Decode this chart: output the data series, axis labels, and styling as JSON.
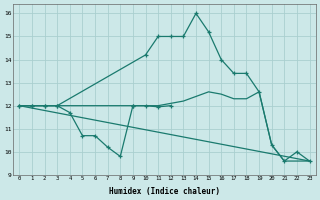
{
  "xlabel": "Humidex (Indice chaleur)",
  "background_color": "#cce8e8",
  "grid_color": "#aacfcf",
  "line_color": "#1a7a6e",
  "xlim": [
    -0.5,
    23.5
  ],
  "ylim": [
    9,
    16.4
  ],
  "xticks": [
    0,
    1,
    2,
    3,
    4,
    5,
    6,
    7,
    8,
    9,
    10,
    11,
    12,
    13,
    14,
    15,
    16,
    17,
    18,
    19,
    20,
    21,
    22,
    23
  ],
  "yticks": [
    9,
    10,
    11,
    12,
    13,
    14,
    15,
    16
  ],
  "series": [
    {
      "x": [
        0,
        1,
        2,
        3,
        10,
        11,
        12,
        13,
        14,
        15,
        16,
        17,
        18,
        19,
        20,
        21,
        22,
        23
      ],
      "y": [
        12,
        12,
        12,
        12,
        14.2,
        15,
        15,
        15,
        16,
        15.2,
        14,
        13.4,
        13.4,
        12.6,
        10.3,
        9.6,
        10.0,
        9.6
      ],
      "markers": true
    },
    {
      "x": [
        0,
        1,
        2,
        3,
        4,
        5,
        6,
        7,
        8,
        9
      ],
      "y": [
        12,
        12,
        12,
        12,
        11.7,
        10.7,
        10.7,
        10.2,
        9.8,
        12
      ],
      "markers": true
    },
    {
      "x": [
        9,
        10,
        11,
        12
      ],
      "y": [
        12,
        12,
        11.95,
        12.0
      ],
      "markers": true
    },
    {
      "x": [
        0,
        1,
        2,
        3,
        10,
        11,
        12,
        13,
        14,
        15,
        16,
        17,
        18,
        19,
        20,
        21,
        22,
        23
      ],
      "y": [
        12,
        12,
        12,
        12,
        12.0,
        12.0,
        12.1,
        12.2,
        12.4,
        12.6,
        12.5,
        12.3,
        12.3,
        12.6,
        10.3,
        9.6,
        9.6,
        9.6
      ],
      "markers": false
    },
    {
      "x": [
        0,
        23
      ],
      "y": [
        12,
        9.6
      ],
      "markers": false
    }
  ]
}
